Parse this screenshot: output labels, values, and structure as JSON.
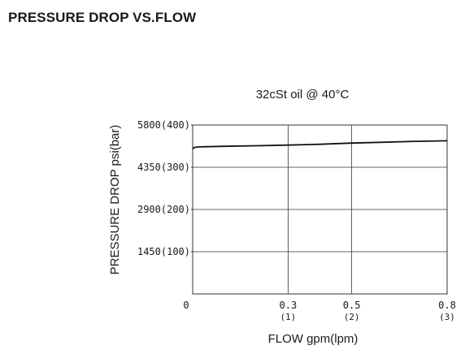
{
  "page": {
    "heading": "PRESSURE DROP VS.FLOW"
  },
  "chart_data": {
    "type": "line",
    "subtitle": "32cSt oil @ 40°C",
    "xlabel": "FLOW gpm(lpm)",
    "ylabel": "PRESSURE DROP psi(bar)",
    "xlim": [
      0,
      0.8
    ],
    "ylim": [
      0,
      5800
    ],
    "grid": true,
    "x_ticks": [
      {
        "value": 0,
        "label": "0",
        "sublabel": ""
      },
      {
        "value": 0.3,
        "label": "0.3",
        "sublabel": "(1)"
      },
      {
        "value": 0.5,
        "label": "0.5",
        "sublabel": "(2)"
      },
      {
        "value": 0.8,
        "label": "0.8",
        "sublabel": "(3)"
      }
    ],
    "y_ticks": [
      {
        "value": 1450,
        "label": "1450(100)"
      },
      {
        "value": 2900,
        "label": "2900(200)"
      },
      {
        "value": 4350,
        "label": "4350(300)"
      },
      {
        "value": 5800,
        "label": "5800(400)"
      }
    ],
    "series": [
      {
        "x": [
          0.0,
          0.005,
          0.02,
          0.1,
          0.2,
          0.3,
          0.4,
          0.5,
          0.6,
          0.7,
          0.8
        ],
        "y": [
          4980,
          5030,
          5050,
          5070,
          5090,
          5110,
          5140,
          5180,
          5210,
          5240,
          5260
        ]
      }
    ],
    "colors": {
      "line": "#111111",
      "grid": "#333333",
      "axis": "#333333"
    }
  }
}
